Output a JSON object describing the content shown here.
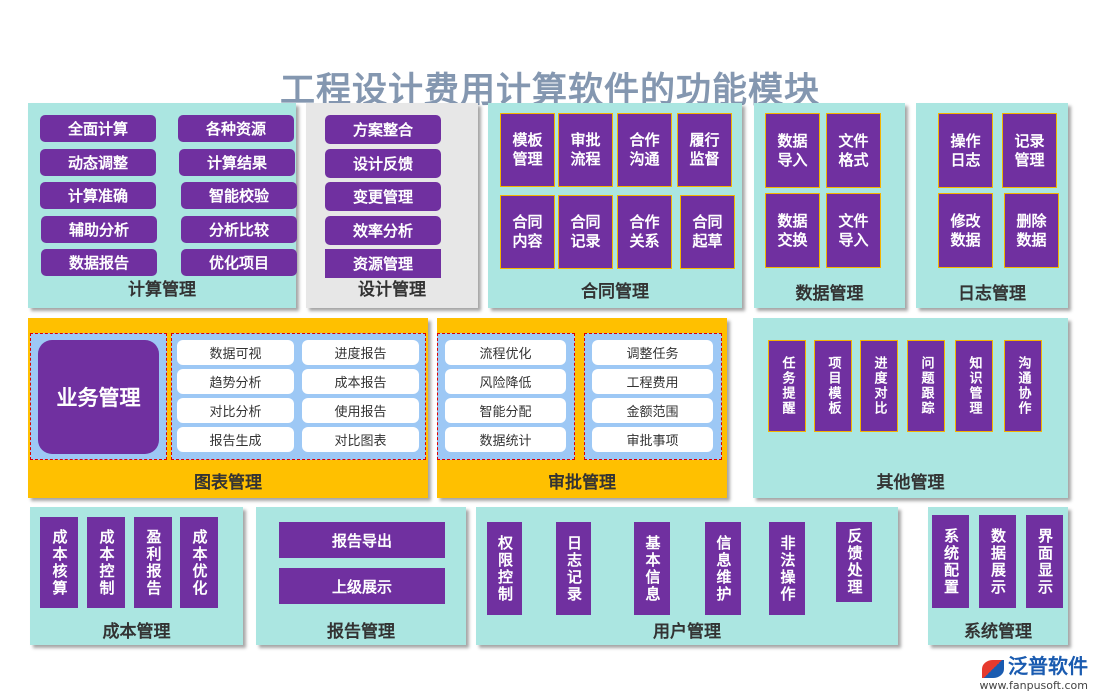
{
  "title": "工程设计费用计算软件的功能模块",
  "colors": {
    "purple": "#7030a0",
    "teal": "#abe6e1",
    "gold": "#ffc000",
    "gray": "#e7e7e7",
    "title": "#8497b0",
    "sub_blue": "#9dc8f5"
  },
  "modules": {
    "calc": {
      "label": "计算管理",
      "items": [
        "全面计算",
        "各种资源",
        "动态调整",
        "计算结果",
        "计算准确",
        "智能校验",
        "辅助分析",
        "分析比较",
        "数据报告",
        "优化项目"
      ]
    },
    "design": {
      "label": "设计管理",
      "items": [
        "方案整合",
        "设计反馈",
        "变更管理",
        "效率分析",
        "资源管理"
      ]
    },
    "contract": {
      "label": "合同管理",
      "items": [
        "模板\n管理",
        "审批\n流程",
        "合作\n沟通",
        "履行\n监督",
        "合同\n内容",
        "合同\n记录",
        "合作\n关系",
        "合同\n起草"
      ]
    },
    "data": {
      "label": "数据管理",
      "items": [
        "数据\n导入",
        "文件\n格式",
        "数据\n交换",
        "文件\n导入"
      ]
    },
    "log": {
      "label": "日志管理",
      "items": [
        "操作\n日志",
        "记录\n管理",
        "修改\n数据",
        "删除\n数据"
      ]
    },
    "chart": {
      "label": "图表管理",
      "business": "业务管理",
      "items": [
        "数据可视",
        "进度报告",
        "趋势分析",
        "成本报告",
        "对比分析",
        "使用报告",
        "报告生成",
        "对比图表"
      ]
    },
    "approval": {
      "label": "审批管理",
      "items": [
        "流程优化",
        "调整任务",
        "风险降低",
        "工程费用",
        "智能分配",
        "金额范围",
        "数据统计",
        "审批事项"
      ]
    },
    "other": {
      "label": "其他管理",
      "items": [
        "任务提醒",
        "项目模板",
        "进度对比",
        "问题跟踪",
        "知识管理",
        "沟通协作"
      ]
    },
    "cost": {
      "label": "成本管理",
      "items": [
        "成本核算",
        "成本控制",
        "盈利报告",
        "成本优化"
      ]
    },
    "report": {
      "label": "报告管理",
      "items": [
        "报告导出",
        "上级展示"
      ]
    },
    "user": {
      "label": "用户管理",
      "items": [
        "权限控制",
        "日志记录",
        "基本信息",
        "信息维护",
        "非法操作",
        "反馈处理"
      ]
    },
    "system": {
      "label": "系统管理",
      "items": [
        "系统配置",
        "数据展示",
        "界面显示"
      ]
    }
  },
  "logo": {
    "name": "泛普软件",
    "url": "www.fanpusoft.com"
  }
}
